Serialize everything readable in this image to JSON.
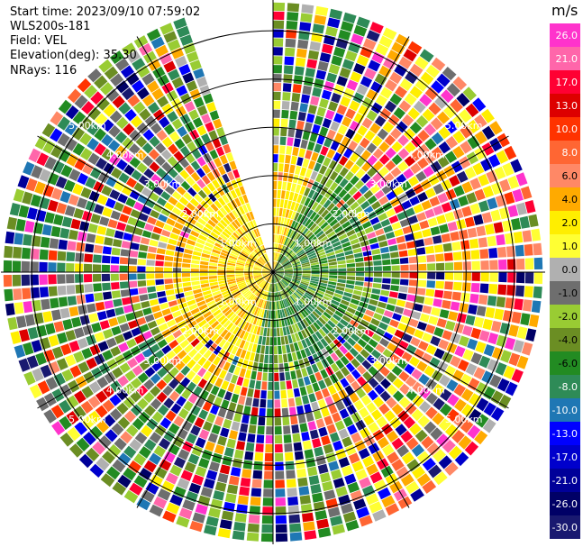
{
  "header": {
    "start_time": "Start time: 2023/09/10 07:59:02",
    "instrument": "WLS200s-181",
    "field": "Field: VEL",
    "elevation": "Elevation(deg): 35.30",
    "nrays": "NRays: 116"
  },
  "chart_data": {
    "type": "ppi-polar",
    "field": "VEL",
    "units": "m/s",
    "elevation_deg": 35.3,
    "nrays": 116,
    "missing_sector_deg": [
      340,
      0
    ],
    "ring_labels": [
      "1.00km",
      "2.00km",
      "3.00km",
      "4.00km",
      "5.00km"
    ],
    "range_rings_km": [
      0.5,
      1,
      2,
      3,
      4,
      5
    ],
    "max_range_km": 5.6,
    "colorbar": {
      "title": "m/s",
      "ticks": [
        "26.0",
        "21.0",
        "17.0",
        "13.0",
        "10.0",
        "8.0",
        "6.0",
        "4.0",
        "2.0",
        "1.0",
        "0.0",
        "-1.0",
        "-2.0",
        "-4.0",
        "-6.0",
        "-8.0",
        "-10.0",
        "-13.0",
        "-17.0",
        "-21.0",
        "-26.0",
        "-30.0"
      ],
      "colors": [
        "#ff33cc",
        "#ff66aa",
        "#ff0033",
        "#dd0000",
        "#ff3300",
        "#ff6633",
        "#ff8866",
        "#ffaa00",
        "#ffee00",
        "#ffff33",
        "#b0b0b0",
        "#6e6e6e",
        "#99cc33",
        "#6b8e23",
        "#228b22",
        "#2e8b57",
        "#1f77b4",
        "#0000ff",
        "#0000cc",
        "#000099",
        "#000066",
        "#191970"
      ]
    }
  }
}
